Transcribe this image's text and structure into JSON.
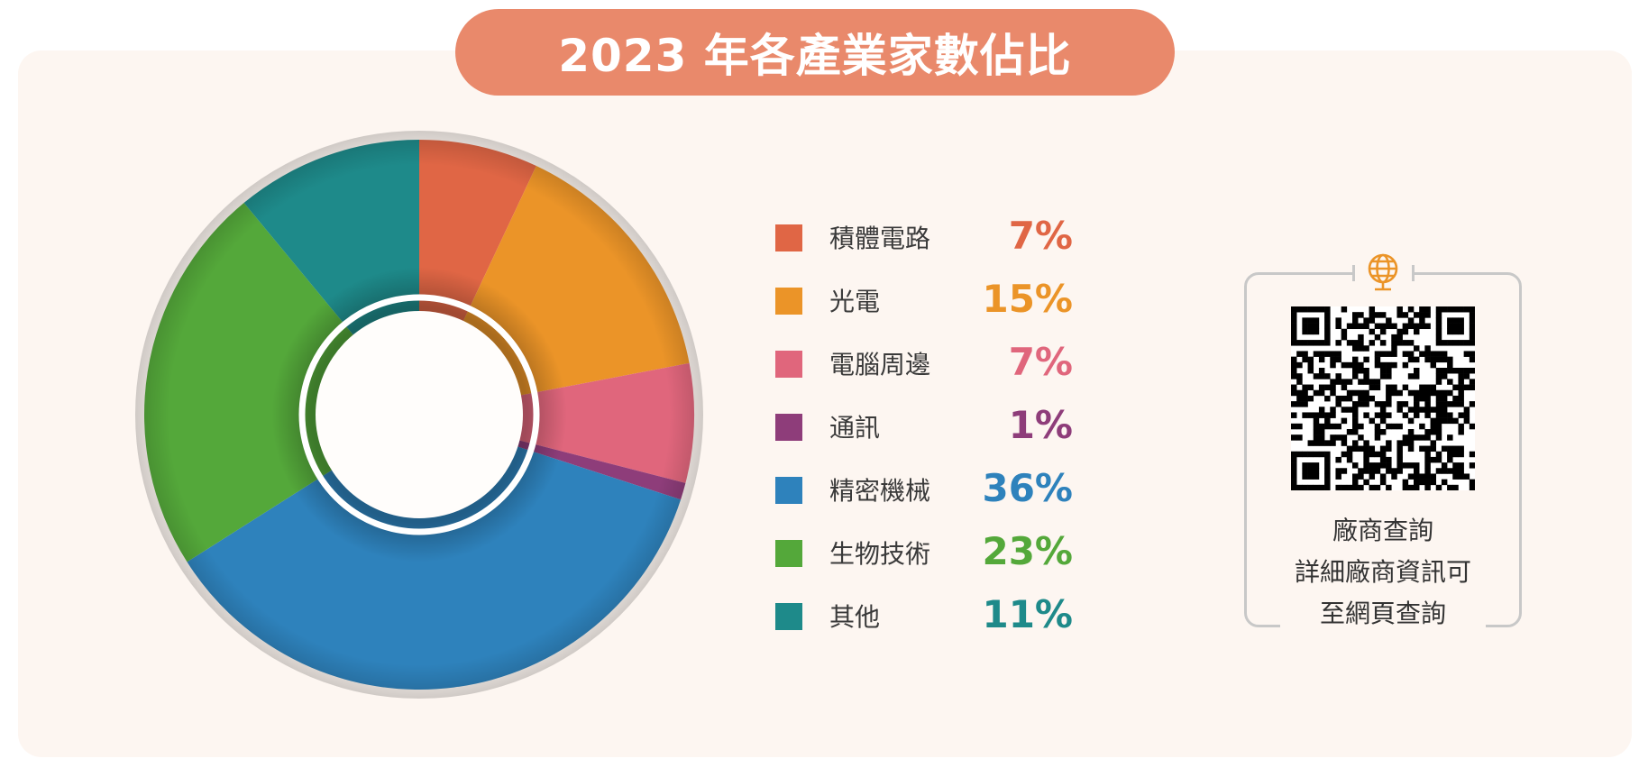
{
  "title": "2023 年各產業家數佔比",
  "chart_data": {
    "type": "pie",
    "variant": "donut",
    "title": "2023 年各產業家數佔比",
    "legend_position": "right",
    "categories": [
      "積體電路",
      "光電",
      "電腦周邊",
      "通訊",
      "精密機械",
      "生物技術",
      "其他"
    ],
    "values": [
      7,
      15,
      7,
      1,
      36,
      23,
      11
    ],
    "value_labels": [
      "7%",
      "15%",
      "7%",
      "1%",
      "36%",
      "23%",
      "11%"
    ],
    "colors": [
      "#e06645",
      "#eb9428",
      "#e0667c",
      "#8e3d7a",
      "#2e82bc",
      "#54a83a",
      "#1e8a8a"
    ]
  },
  "qr_panel": {
    "icon": "globe-monitor-icon",
    "lines": [
      "廠商查詢",
      "詳細廠商資訊可",
      "至網頁查詢"
    ]
  }
}
